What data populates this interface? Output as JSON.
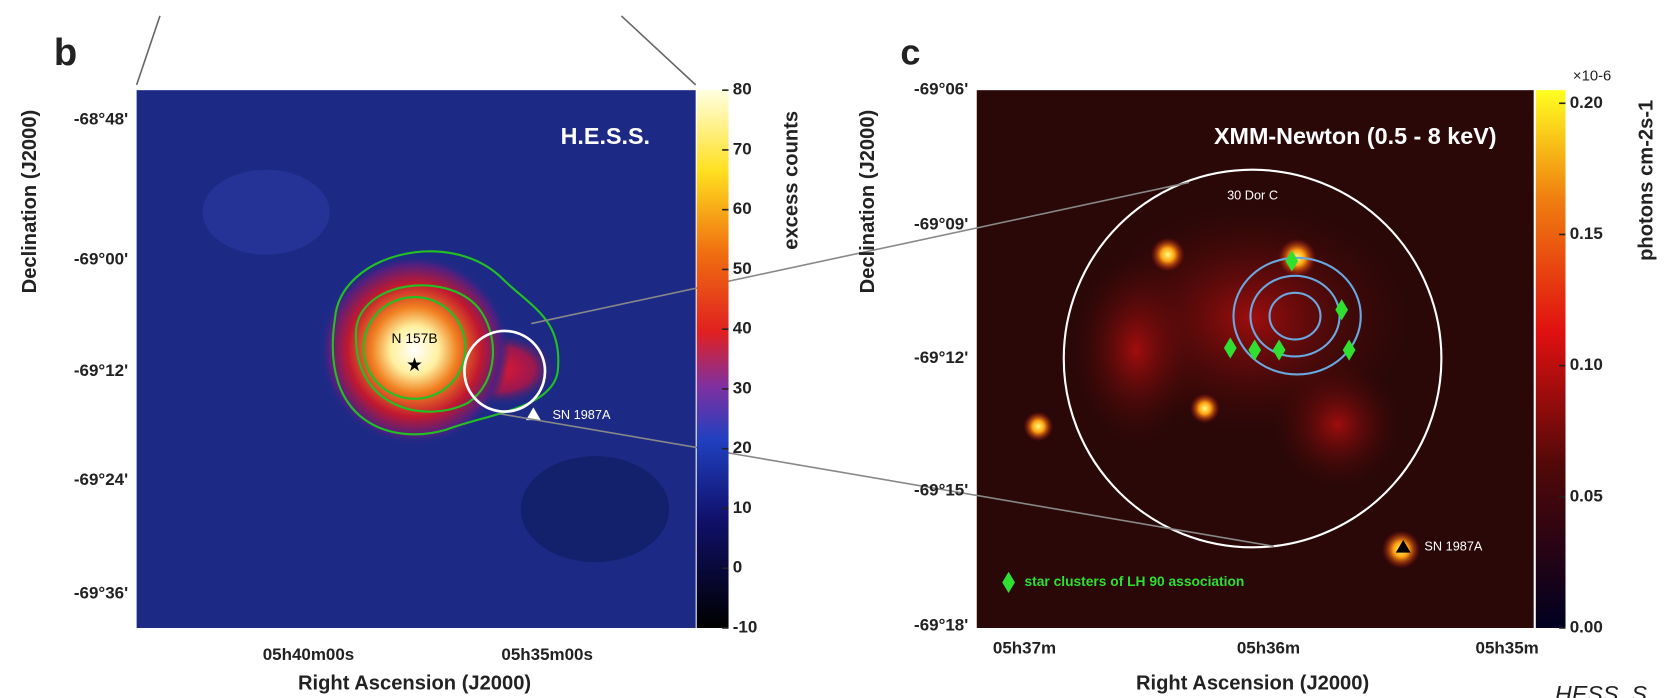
{
  "panels": [
    {
      "label": "b",
      "title": "H.E.S.S.",
      "y_axis_label": "Declination (J2000)",
      "x_axis_label": "Right Ascension (J2000)",
      "y_ticks": [
        "-68°48'",
        "-69°00'",
        "-69°12'",
        "-69°24'",
        "-69°36'"
      ],
      "x_ticks": [
        "05h40m00s",
        "05h35m00s"
      ],
      "annotations": {
        "source": "N 157B",
        "remnant": "SN 1987A"
      },
      "colorbar": {
        "label": "excess counts",
        "lim": [
          -10,
          80
        ],
        "ticks": [
          -10,
          0,
          10,
          20,
          30,
          40,
          50,
          60,
          70,
          80
        ]
      }
    },
    {
      "label": "c",
      "title": "XMM-Newton (0.5 - 8 keV)",
      "y_axis_label": "Declination (J2000)",
      "x_axis_label": "Right Ascension (J2000)",
      "y_ticks": [
        "-69°06'",
        "-69°09'",
        "-69°12'",
        "-69°15'",
        "-69°18'"
      ],
      "x_ticks": [
        "05h37m",
        "05h36m",
        "05h35m"
      ],
      "annotations": {
        "region": "30 Dor C",
        "remnant": "SN 1987A",
        "legend": "star clusters of LH 90 association"
      },
      "colorbar": {
        "label": "photons cm-2s-1",
        "scale": "×10-6",
        "lim": [
          0,
          0.205
        ],
        "ticks": [
          {
            "value": 0,
            "label": "0.00"
          },
          {
            "value": 0.05,
            "label": "0.05"
          },
          {
            "value": 0.1,
            "label": "0.10"
          },
          {
            "value": 0.15,
            "label": "0.15"
          },
          {
            "value": 0.2,
            "label": "0.20"
          }
        ]
      }
    }
  ],
  "footer": "HESS, S"
}
